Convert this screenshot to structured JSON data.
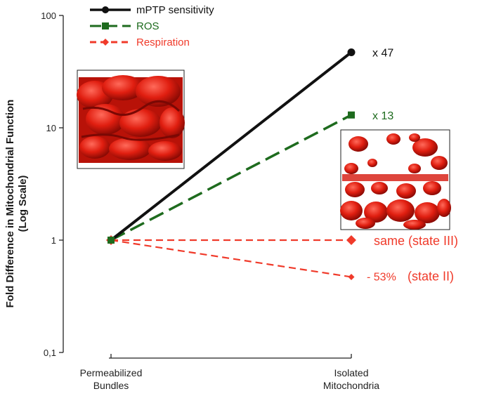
{
  "chart_data": {
    "type": "line",
    "y_scale": "log",
    "ylim": [
      0.1,
      100
    ],
    "y_ticks": [
      "0,1",
      "1",
      "10",
      "100"
    ],
    "y_tick_values": [
      0.1,
      1,
      10,
      100
    ],
    "ylabel_line1": "Fold Difference in Mitochondrial Function",
    "ylabel_line2": "(Log Scale)",
    "categories": [
      "Permeabilized Bundles",
      "Isolated Mitochondria"
    ],
    "category_lines": [
      [
        "Permeabilized",
        "Bundles"
      ],
      [
        "Isolated",
        "Mitochondria"
      ]
    ],
    "legend_position": "top",
    "series": [
      {
        "name": "mPTP sensitivity",
        "values": [
          1,
          47
        ],
        "color": "#111111",
        "marker": "circle",
        "dash": "solid",
        "end_label": "x 47"
      },
      {
        "name": "ROS",
        "values": [
          1,
          13
        ],
        "color": "#1e6b1e",
        "marker": "square",
        "dash": "dashed",
        "end_label": "x 13"
      },
      {
        "name": "Respiration",
        "values": [
          1,
          1
        ],
        "color": "#f03a2a",
        "marker": "diamond",
        "dash": "dashed",
        "end_label": "same (state III)"
      },
      {
        "name": "Respiration",
        "values": [
          1,
          0.47
        ],
        "color": "#f03a2a",
        "marker": "diamond-small",
        "dash": "dashed",
        "end_label": "- 53%",
        "end_label_2": "(state II)"
      }
    ]
  }
}
